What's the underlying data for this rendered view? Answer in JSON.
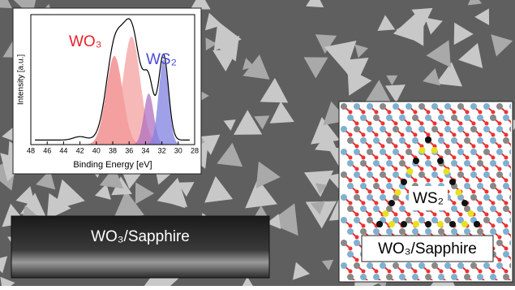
{
  "inset_plot": {
    "y_label": "Intensity [a.u.]",
    "x_label": "Binding Energy [eV]",
    "x_ticks": [
      "48",
      "46",
      "44",
      "42",
      "40",
      "38",
      "36",
      "34",
      "32",
      "30",
      "28"
    ],
    "peak_labels": [
      "WO₃",
      "WS₂"
    ]
  },
  "cross_section": {
    "label": "WO₃/Sapphire"
  },
  "model": {
    "inner_label": "WS₂",
    "outer_label": "WO₃/Sapphire"
  }
}
